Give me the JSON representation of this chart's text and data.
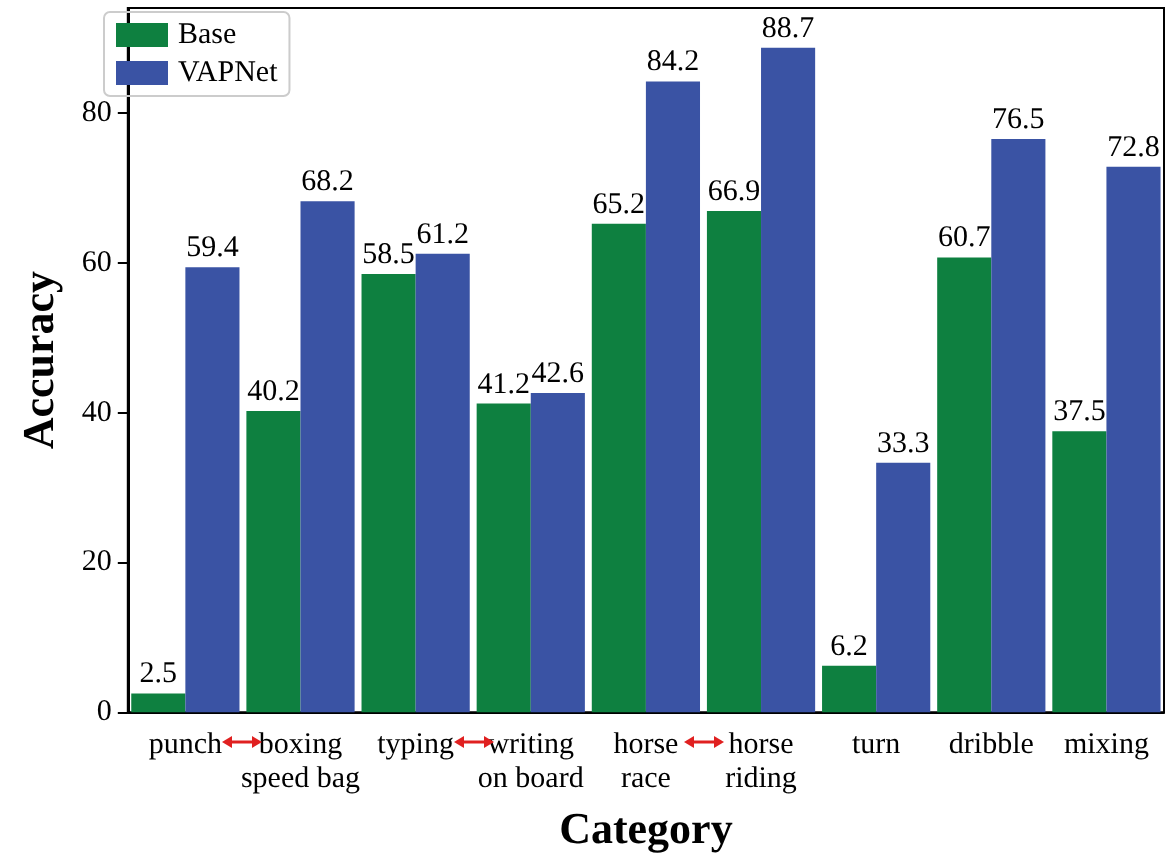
{
  "chart_data": {
    "type": "bar",
    "xlabel": "Category",
    "ylabel": "Accuracy",
    "categories": [
      "punch",
      "boxing\nspeed bag",
      "typing",
      "writing\non board",
      "horse\nrace",
      "horse\nriding",
      "turn",
      "dribble",
      "mixing"
    ],
    "series": [
      {
        "name": "Base",
        "color": "#0e8040",
        "values": [
          2.5,
          40.2,
          58.5,
          41.2,
          65.2,
          66.9,
          6.2,
          60.7,
          37.5
        ]
      },
      {
        "name": "VAPNet",
        "color": "#3a53a4",
        "values": [
          59.4,
          68.2,
          61.2,
          42.6,
          84.2,
          88.7,
          33.3,
          76.5,
          72.8
        ]
      }
    ],
    "data_labels": true,
    "ylim": [
      0,
      94
    ],
    "yticks": [
      0,
      20,
      40,
      60,
      80
    ],
    "grid": false,
    "legend": "top left"
  }
}
